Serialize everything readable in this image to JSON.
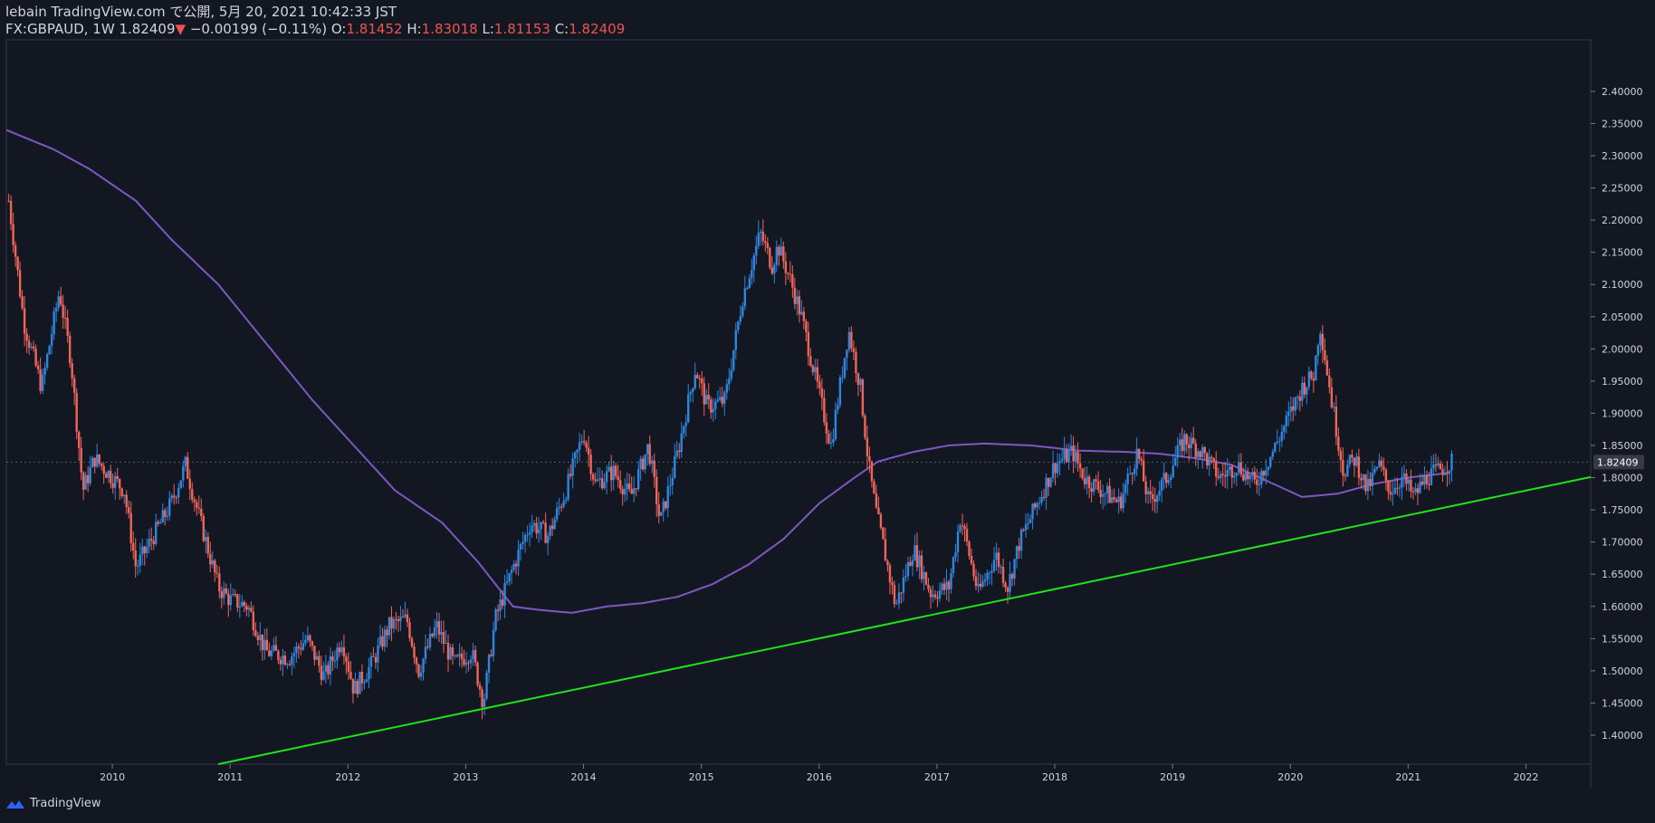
{
  "header": {
    "line1": "lebain TradingView.com で公開, 5月 20, 2021 10:42:33 JST",
    "symbol": "FX:GBPAUD, 1W",
    "price": "1.82409",
    "change": "−0.00199 (−0.11%)",
    "o_label": "O:",
    "o_value": "1.81452",
    "h_label": "H:",
    "h_value": "1.83018",
    "l_label": "L:",
    "l_value": "1.81153",
    "c_label": "C:",
    "c_value": "1.82409"
  },
  "footer": {
    "brand": "TradingView",
    "logo_icon": "tradingview-logo-icon"
  },
  "chart_data": {
    "type": "line",
    "title": "FX:GBPAUD, 1W",
    "x_unit": "year",
    "xlim": [
      2009.1,
      2022.55
    ],
    "ylim": [
      1.355,
      2.48
    ],
    "x_ticks": [
      "2010",
      "2011",
      "2012",
      "2013",
      "2014",
      "2015",
      "2016",
      "2017",
      "2018",
      "2019",
      "2020",
      "2021",
      "2022"
    ],
    "y_ticks": [
      "1.40000",
      "1.45000",
      "1.50000",
      "1.55000",
      "1.60000",
      "1.65000",
      "1.70000",
      "1.75000",
      "1.80000",
      "1.85000",
      "1.90000",
      "1.95000",
      "2.00000",
      "2.05000",
      "2.10000",
      "2.15000",
      "2.20000",
      "2.25000",
      "2.30000",
      "2.35000",
      "2.40000"
    ],
    "last_price_label": "1.82409",
    "last_price": 1.82409,
    "series": [
      {
        "style": "candles",
        "up_color": "#2e86de",
        "down_color": "#f0655a",
        "x": [
          2009.12,
          2009.25,
          2009.4,
          2009.55,
          2009.65,
          2009.75,
          2009.85,
          2010.0,
          2010.1,
          2010.2,
          2010.35,
          2010.5,
          2010.62,
          2010.75,
          2010.9,
          2011.0,
          2011.15,
          2011.3,
          2011.5,
          2011.65,
          2011.8,
          2011.95,
          2012.05,
          2012.2,
          2012.35,
          2012.5,
          2012.6,
          2012.75,
          2012.9,
          2013.05,
          2013.15,
          2013.25,
          2013.4,
          2013.55,
          2013.7,
          2013.85,
          2014.0,
          2014.1,
          2014.25,
          2014.4,
          2014.55,
          2014.65,
          2014.8,
          2014.95,
          2015.05,
          2015.2,
          2015.35,
          2015.5,
          2015.6,
          2015.65,
          2015.75,
          2015.85,
          2015.95,
          2016.1,
          2016.25,
          2016.35,
          2016.42,
          2016.48,
          2016.55,
          2016.65,
          2016.8,
          2016.95,
          2017.1,
          2017.2,
          2017.35,
          2017.5,
          2017.6,
          2017.7,
          2017.85,
          2018.0,
          2018.15,
          2018.25,
          2018.4,
          2018.55,
          2018.7,
          2018.8,
          2018.95,
          2019.1,
          2019.25,
          2019.4,
          2019.55,
          2019.7,
          2019.85,
          2020.0,
          2020.1,
          2020.2,
          2020.25,
          2020.35,
          2020.45,
          2020.55,
          2020.65,
          2020.75,
          2020.85,
          2020.95,
          2021.05,
          2021.15,
          2021.25,
          2021.37
        ],
        "values": [
          2.23,
          2.04,
          1.94,
          2.09,
          1.98,
          1.78,
          1.83,
          1.8,
          1.78,
          1.66,
          1.71,
          1.76,
          1.82,
          1.73,
          1.63,
          1.61,
          1.6,
          1.53,
          1.52,
          1.55,
          1.49,
          1.55,
          1.47,
          1.51,
          1.57,
          1.58,
          1.5,
          1.57,
          1.51,
          1.53,
          1.45,
          1.58,
          1.66,
          1.73,
          1.71,
          1.78,
          1.87,
          1.79,
          1.81,
          1.77,
          1.85,
          1.73,
          1.84,
          1.97,
          1.91,
          1.92,
          2.08,
          2.18,
          2.13,
          2.16,
          2.11,
          2.05,
          1.97,
          1.85,
          2.03,
          1.94,
          1.82,
          1.75,
          1.69,
          1.6,
          1.69,
          1.62,
          1.63,
          1.74,
          1.62,
          1.68,
          1.63,
          1.7,
          1.76,
          1.82,
          1.84,
          1.8,
          1.78,
          1.76,
          1.84,
          1.76,
          1.8,
          1.86,
          1.84,
          1.8,
          1.82,
          1.79,
          1.84,
          1.9,
          1.94,
          1.96,
          2.04,
          1.92,
          1.81,
          1.83,
          1.78,
          1.82,
          1.78,
          1.8,
          1.77,
          1.8,
          1.81,
          1.82409
        ]
      },
      {
        "style": "moving-average",
        "color": "#7e57c2",
        "x": [
          2009.1,
          2009.5,
          2009.8,
          2010.2,
          2010.5,
          2010.9,
          2011.3,
          2011.7,
          2012.1,
          2012.4,
          2012.8,
          2013.1,
          2013.4,
          2013.6,
          2013.9,
          2014.2,
          2014.5,
          2014.8,
          2015.1,
          2015.4,
          2015.7,
          2016.0,
          2016.3,
          2016.5,
          2016.8,
          2017.1,
          2017.4,
          2017.8,
          2018.2,
          2018.6,
          2018.9,
          2019.2,
          2019.5,
          2019.8,
          2020.1,
          2020.4,
          2020.7,
          2021.0,
          2021.37
        ],
        "values": [
          2.34,
          2.31,
          2.28,
          2.23,
          2.17,
          2.1,
          2.01,
          1.92,
          1.84,
          1.78,
          1.73,
          1.67,
          1.6,
          1.595,
          1.59,
          1.6,
          1.605,
          1.615,
          1.635,
          1.665,
          1.705,
          1.76,
          1.8,
          1.825,
          1.84,
          1.85,
          1.853,
          1.85,
          1.842,
          1.84,
          1.837,
          1.83,
          1.82,
          1.795,
          1.77,
          1.775,
          1.79,
          1.8,
          1.808
        ]
      },
      {
        "style": "trendline",
        "color": "#22e01c",
        "x": [
          2010.9,
          2022.55
        ],
        "values": [
          1.355,
          1.801
        ]
      }
    ]
  }
}
